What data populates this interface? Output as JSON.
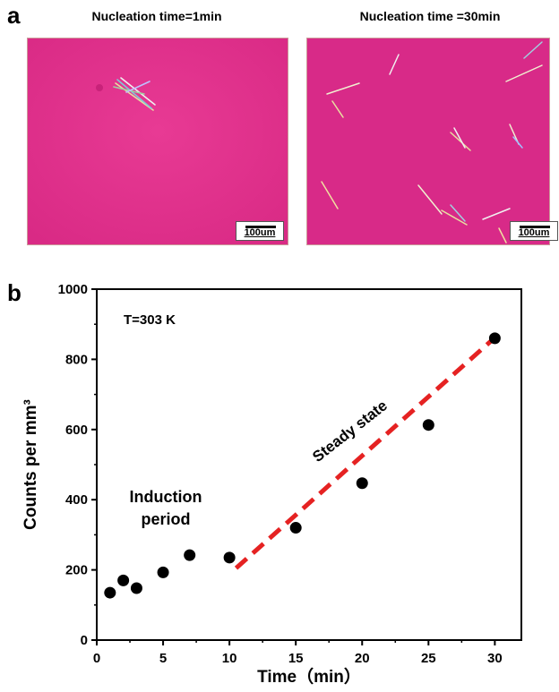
{
  "panel_a": {
    "letter": "a",
    "left_title": "Nucleation time=1min",
    "right_title": "Nucleation time =30min",
    "scale_label": "100um",
    "image_color": "#e0308c"
  },
  "panel_b": {
    "letter": "b"
  },
  "chart_data": {
    "type": "scatter",
    "xlabel": "Time（min）",
    "ylabel": "Counts  per  mm³",
    "xlim": [
      0,
      32
    ],
    "ylim": [
      0,
      1000
    ],
    "xticks": [
      0,
      5,
      10,
      15,
      20,
      25,
      30
    ],
    "yticks": [
      0,
      200,
      400,
      600,
      800,
      1000
    ],
    "points": {
      "x": [
        1,
        2,
        3,
        5,
        7,
        10,
        15,
        20,
        25,
        30
      ],
      "y": [
        135,
        170,
        148,
        193,
        242,
        235,
        320,
        447,
        613,
        860
      ]
    },
    "fit_line": {
      "style": "dashed",
      "color": "#e52222",
      "x": [
        10.5,
        30
      ],
      "y": [
        205,
        862
      ]
    },
    "annotations": {
      "temperature": "T=303 K",
      "induction_line1": "Induction",
      "induction_line2": "period",
      "steady": "Steady state"
    },
    "point_color": "#000000"
  }
}
